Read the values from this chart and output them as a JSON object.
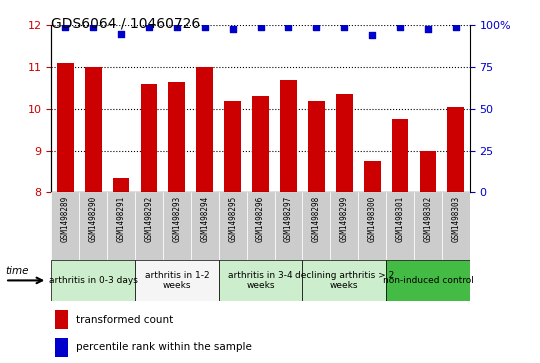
{
  "title": "GDS6064 / 10460726",
  "samples": [
    "GSM1498289",
    "GSM1498290",
    "GSM1498291",
    "GSM1498292",
    "GSM1498293",
    "GSM1498294",
    "GSM1498295",
    "GSM1498296",
    "GSM1498297",
    "GSM1498298",
    "GSM1498299",
    "GSM1498300",
    "GSM1498301",
    "GSM1498302",
    "GSM1498303"
  ],
  "bar_values": [
    11.1,
    11.0,
    8.35,
    10.6,
    10.65,
    11.0,
    10.2,
    10.3,
    10.7,
    10.2,
    10.35,
    8.75,
    9.75,
    9.0,
    10.05
  ],
  "percentile_values": [
    99,
    99,
    95,
    99,
    99,
    99,
    98,
    99,
    99,
    99,
    99,
    94,
    99,
    98,
    99
  ],
  "bar_color": "#cc0000",
  "dot_color": "#0000cc",
  "ylim_left": [
    8,
    12
  ],
  "ylim_right": [
    0,
    100
  ],
  "yticks_left": [
    8,
    9,
    10,
    11,
    12
  ],
  "yticks_right": [
    0,
    25,
    50,
    75,
    100
  ],
  "groups": [
    {
      "label": "arthritis in 0-3 days",
      "start": 0,
      "end": 3,
      "color": "#cceecc"
    },
    {
      "label": "arthritis in 1-2\nweeks",
      "start": 3,
      "end": 6,
      "color": "#f5f5f5"
    },
    {
      "label": "arthritis in 3-4\nweeks",
      "start": 6,
      "end": 9,
      "color": "#cceecc"
    },
    {
      "label": "declining arthritis > 2\nweeks",
      "start": 9,
      "end": 12,
      "color": "#cceecc"
    },
    {
      "label": "non-induced control",
      "start": 12,
      "end": 15,
      "color": "#44bb44"
    }
  ],
  "sample_box_color": "#cccccc",
  "legend_bar_label": "transformed count",
  "legend_dot_label": "percentile rank within the sample",
  "tick_color_left": "#cc0000",
  "tick_color_right": "#0000cc",
  "background_color": "#ffffff",
  "plot_bg": "#ffffff",
  "right_axis_top_label": "100%"
}
